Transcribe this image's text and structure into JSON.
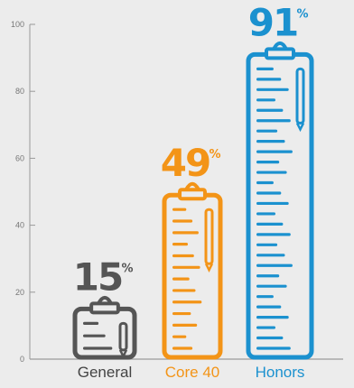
{
  "chart_data": {
    "type": "bar",
    "title": "",
    "xlabel": "",
    "ylabel": "",
    "ylim": [
      0,
      100
    ],
    "yticks": [
      0,
      20,
      40,
      60,
      80,
      100
    ],
    "categories": [
      "General",
      "Core 40",
      "Honors"
    ],
    "values": [
      15,
      49,
      91
    ],
    "value_labels": [
      "15",
      "49",
      "91"
    ],
    "value_suffix": "%",
    "grid": false,
    "legend": "none",
    "colors": [
      "#555555",
      "#f39417",
      "#1b91cf"
    ],
    "mark_style": "clipboard-icon"
  }
}
